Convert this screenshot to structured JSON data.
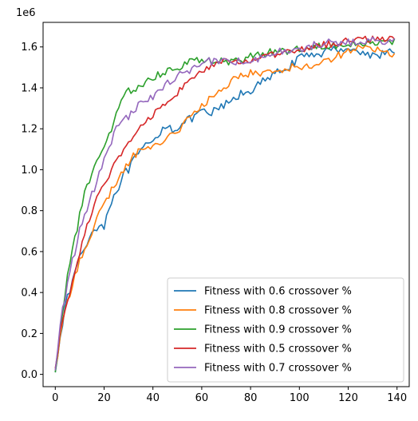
{
  "chart_data": {
    "type": "line",
    "title": "",
    "xlabel": "",
    "ylabel": "",
    "y_offset_label": "1e6",
    "xlim": [
      -5,
      145
    ],
    "ylim": [
      -0.06,
      1.72
    ],
    "xticks": [
      0,
      20,
      40,
      60,
      80,
      100,
      120,
      140
    ],
    "yticks": [
      0.0,
      0.2,
      0.4,
      0.6,
      0.8,
      1.0,
      1.2,
      1.4,
      1.6
    ],
    "xtick_labels": [
      "0",
      "20",
      "40",
      "60",
      "80",
      "100",
      "120",
      "140"
    ],
    "ytick_labels": [
      "0.0",
      "0.2",
      "0.4",
      "0.6",
      "0.8",
      "1.0",
      "1.2",
      "1.4",
      "1.6"
    ],
    "grid": false,
    "legend_position": "lower-right",
    "x_count": 140,
    "series": [
      {
        "name": "Fitness with 0.6 crossover %",
        "color": "#1f77b4",
        "anchors": [
          [
            0,
            0.01
          ],
          [
            2,
            0.2
          ],
          [
            5,
            0.37
          ],
          [
            8,
            0.5
          ],
          [
            10,
            0.57
          ],
          [
            12,
            0.62
          ],
          [
            15,
            0.69
          ],
          [
            18,
            0.74
          ],
          [
            20,
            0.72
          ],
          [
            22,
            0.82
          ],
          [
            25,
            0.9
          ],
          [
            28,
            0.97
          ],
          [
            30,
            1.0
          ],
          [
            32,
            1.04
          ],
          [
            35,
            1.09
          ],
          [
            38,
            1.12
          ],
          [
            40,
            1.13
          ],
          [
            42,
            1.17
          ],
          [
            45,
            1.22
          ],
          [
            48,
            1.2
          ],
          [
            50,
            1.21
          ],
          [
            53,
            1.23
          ],
          [
            56,
            1.25
          ],
          [
            60,
            1.28
          ],
          [
            63,
            1.27
          ],
          [
            66,
            1.29
          ],
          [
            70,
            1.32
          ],
          [
            73,
            1.34
          ],
          [
            76,
            1.37
          ],
          [
            80,
            1.39
          ],
          [
            84,
            1.42
          ],
          [
            88,
            1.45
          ],
          [
            92,
            1.48
          ],
          [
            96,
            1.51
          ],
          [
            100,
            1.54
          ],
          [
            104,
            1.56
          ],
          [
            108,
            1.57
          ],
          [
            112,
            1.58
          ],
          [
            116,
            1.59
          ],
          [
            120,
            1.6
          ],
          [
            125,
            1.57
          ],
          [
            130,
            1.56
          ],
          [
            135,
            1.57
          ],
          [
            139,
            1.57
          ]
        ],
        "noise": 0.022
      },
      {
        "name": "Fitness with 0.8 crossover %",
        "color": "#ff7f0e",
        "anchors": [
          [
            0,
            0.02
          ],
          [
            2,
            0.18
          ],
          [
            5,
            0.35
          ],
          [
            8,
            0.48
          ],
          [
            10,
            0.56
          ],
          [
            12,
            0.62
          ],
          [
            15,
            0.7
          ],
          [
            18,
            0.78
          ],
          [
            20,
            0.82
          ],
          [
            22,
            0.88
          ],
          [
            25,
            0.94
          ],
          [
            28,
            0.99
          ],
          [
            30,
            1.03
          ],
          [
            32,
            1.07
          ],
          [
            35,
            1.1
          ],
          [
            38,
            1.1
          ],
          [
            40,
            1.11
          ],
          [
            42,
            1.13
          ],
          [
            45,
            1.15
          ],
          [
            48,
            1.18
          ],
          [
            50,
            1.19
          ],
          [
            53,
            1.23
          ],
          [
            56,
            1.26
          ],
          [
            60,
            1.31
          ],
          [
            63,
            1.34
          ],
          [
            66,
            1.37
          ],
          [
            70,
            1.41
          ],
          [
            73,
            1.44
          ],
          [
            76,
            1.47
          ],
          [
            80,
            1.47
          ],
          [
            84,
            1.47
          ],
          [
            88,
            1.48
          ],
          [
            92,
            1.49
          ],
          [
            96,
            1.5
          ],
          [
            100,
            1.5
          ],
          [
            104,
            1.51
          ],
          [
            108,
            1.52
          ],
          [
            112,
            1.54
          ],
          [
            116,
            1.56
          ],
          [
            120,
            1.58
          ],
          [
            125,
            1.6
          ],
          [
            130,
            1.59
          ],
          [
            135,
            1.57
          ],
          [
            139,
            1.57
          ]
        ],
        "noise": 0.02
      },
      {
        "name": "Fitness with 0.9 crossover %",
        "color": "#2ca02c",
        "anchors": [
          [
            0,
            0.01
          ],
          [
            2,
            0.22
          ],
          [
            5,
            0.48
          ],
          [
            8,
            0.66
          ],
          [
            10,
            0.78
          ],
          [
            12,
            0.88
          ],
          [
            15,
            0.98
          ],
          [
            18,
            1.05
          ],
          [
            20,
            1.12
          ],
          [
            22,
            1.16
          ],
          [
            25,
            1.28
          ],
          [
            28,
            1.36
          ],
          [
            30,
            1.38
          ],
          [
            33,
            1.4
          ],
          [
            36,
            1.42
          ],
          [
            40,
            1.45
          ],
          [
            43,
            1.47
          ],
          [
            46,
            1.49
          ],
          [
            50,
            1.5
          ],
          [
            53,
            1.52
          ],
          [
            56,
            1.54
          ],
          [
            60,
            1.53
          ],
          [
            63,
            1.53
          ],
          [
            66,
            1.53
          ],
          [
            70,
            1.53
          ],
          [
            74,
            1.53
          ],
          [
            78,
            1.54
          ],
          [
            82,
            1.56
          ],
          [
            86,
            1.57
          ],
          [
            90,
            1.58
          ],
          [
            94,
            1.58
          ],
          [
            98,
            1.59
          ],
          [
            102,
            1.59
          ],
          [
            106,
            1.6
          ],
          [
            110,
            1.61
          ],
          [
            115,
            1.61
          ],
          [
            120,
            1.62
          ],
          [
            125,
            1.62
          ],
          [
            130,
            1.62
          ],
          [
            135,
            1.62
          ],
          [
            139,
            1.62
          ]
        ],
        "noise": 0.02
      },
      {
        "name": "Fitness with 0.5 crossover %",
        "color": "#d62728",
        "anchors": [
          [
            0,
            0.03
          ],
          [
            2,
            0.2
          ],
          [
            5,
            0.36
          ],
          [
            8,
            0.5
          ],
          [
            10,
            0.6
          ],
          [
            12,
            0.68
          ],
          [
            15,
            0.8
          ],
          [
            18,
            0.88
          ],
          [
            20,
            0.92
          ],
          [
            22,
            0.97
          ],
          [
            25,
            1.04
          ],
          [
            28,
            1.09
          ],
          [
            30,
            1.13
          ],
          [
            33,
            1.18
          ],
          [
            36,
            1.22
          ],
          [
            40,
            1.27
          ],
          [
            43,
            1.31
          ],
          [
            46,
            1.34
          ],
          [
            50,
            1.38
          ],
          [
            53,
            1.41
          ],
          [
            56,
            1.44
          ],
          [
            60,
            1.48
          ],
          [
            63,
            1.5
          ],
          [
            66,
            1.51
          ],
          [
            70,
            1.53
          ],
          [
            74,
            1.53
          ],
          [
            78,
            1.53
          ],
          [
            82,
            1.54
          ],
          [
            86,
            1.55
          ],
          [
            90,
            1.56
          ],
          [
            94,
            1.57
          ],
          [
            98,
            1.58
          ],
          [
            102,
            1.59
          ],
          [
            106,
            1.6
          ],
          [
            110,
            1.61
          ],
          [
            115,
            1.62
          ],
          [
            120,
            1.63
          ],
          [
            125,
            1.64
          ],
          [
            130,
            1.64
          ],
          [
            135,
            1.64
          ],
          [
            139,
            1.64
          ]
        ],
        "noise": 0.018
      },
      {
        "name": "Fitness with 0.7 crossover %",
        "color": "#9467bd",
        "anchors": [
          [
            0,
            0.02
          ],
          [
            2,
            0.24
          ],
          [
            5,
            0.45
          ],
          [
            8,
            0.6
          ],
          [
            10,
            0.7
          ],
          [
            12,
            0.78
          ],
          [
            15,
            0.88
          ],
          [
            18,
            0.98
          ],
          [
            20,
            1.04
          ],
          [
            22,
            1.1
          ],
          [
            25,
            1.2
          ],
          [
            28,
            1.24
          ],
          [
            30,
            1.26
          ],
          [
            33,
            1.3
          ],
          [
            36,
            1.34
          ],
          [
            40,
            1.36
          ],
          [
            43,
            1.39
          ],
          [
            46,
            1.42
          ],
          [
            50,
            1.46
          ],
          [
            53,
            1.48
          ],
          [
            56,
            1.49
          ],
          [
            60,
            1.51
          ],
          [
            63,
            1.53
          ],
          [
            66,
            1.53
          ],
          [
            70,
            1.53
          ],
          [
            74,
            1.53
          ],
          [
            78,
            1.53
          ],
          [
            82,
            1.54
          ],
          [
            86,
            1.56
          ],
          [
            90,
            1.57
          ],
          [
            94,
            1.58
          ],
          [
            98,
            1.58
          ],
          [
            102,
            1.59
          ],
          [
            106,
            1.61
          ],
          [
            110,
            1.62
          ],
          [
            115,
            1.62
          ],
          [
            120,
            1.62
          ],
          [
            125,
            1.63
          ],
          [
            130,
            1.63
          ],
          [
            135,
            1.63
          ],
          [
            139,
            1.63
          ]
        ],
        "noise": 0.02
      }
    ]
  }
}
